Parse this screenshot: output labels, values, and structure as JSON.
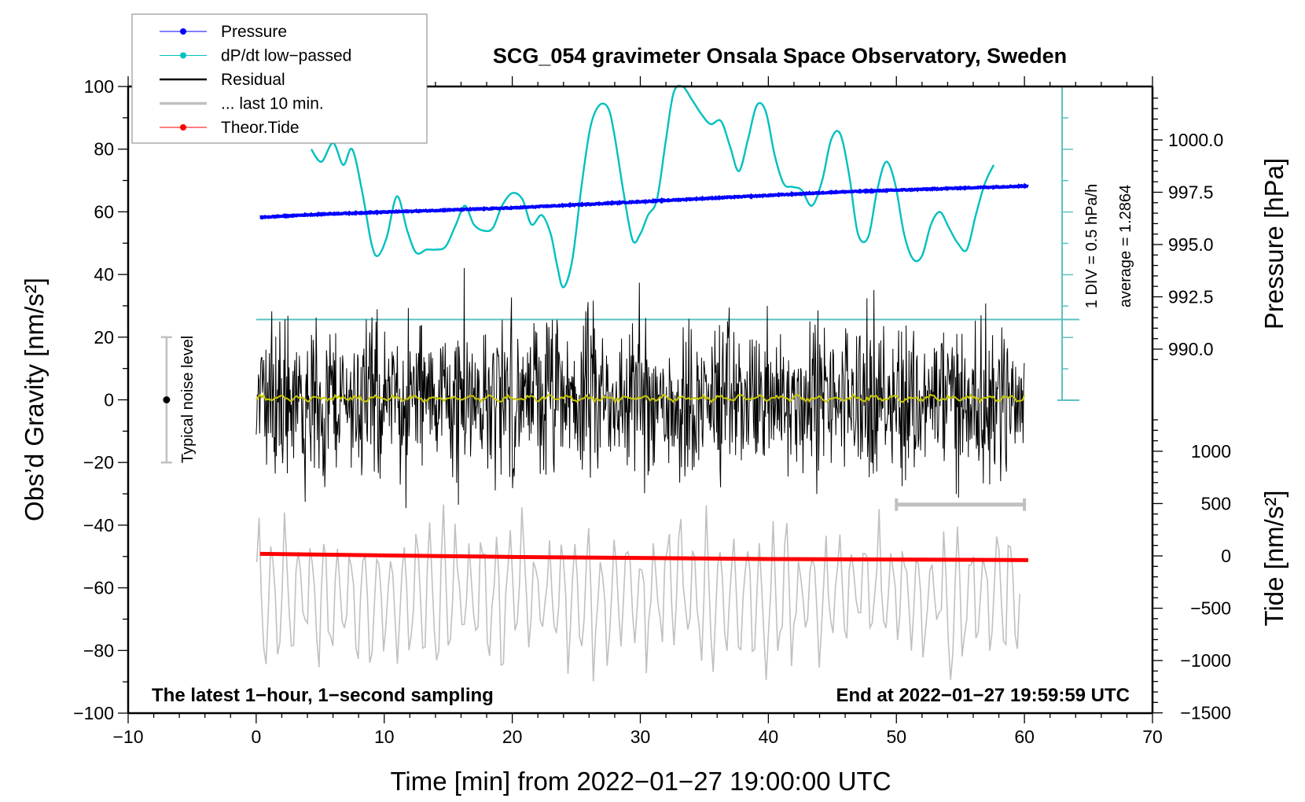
{
  "chart_data": {
    "type": "line",
    "title": "SCG_054 gravimeter Onsala Space Observatory, Sweden",
    "xlabel": "Time [min] from 2022−01−27 19:00:00 UTC",
    "ylabel_left": "Obs’d Gravity [nm/s²]",
    "ylabel_right_top": "Pressure [hPa]",
    "ylabel_right_bottom": "Tide [nm/s²]",
    "xlim": [
      -10,
      70
    ],
    "ylim_left": [
      -100,
      100
    ],
    "x_ticks": [
      "−10",
      "0",
      "10",
      "20",
      "30",
      "40",
      "50",
      "60",
      "70"
    ],
    "x_tick_values": [
      -10,
      0,
      10,
      20,
      30,
      40,
      50,
      60,
      70
    ],
    "y_left_ticks": [
      "100",
      "80",
      "60",
      "40",
      "20",
      "0",
      "−20",
      "−40",
      "−60",
      "−80",
      "−100"
    ],
    "y_left_tick_values": [
      100,
      80,
      60,
      40,
      20,
      0,
      -20,
      -40,
      -60,
      -80,
      -100
    ],
    "pressure_axis": {
      "ticks": [
        "1000.0",
        "997.5",
        "995.0",
        "992.5",
        "990.0"
      ],
      "tick_values": [
        1000.0,
        997.5,
        995.0,
        992.5,
        990.0
      ]
    },
    "tide_axis": {
      "ticks": [
        "1000",
        "500",
        "0",
        "−500",
        "−1000",
        "−1500"
      ],
      "tick_values": [
        1000,
        500,
        0,
        -500,
        -1000,
        -1500
      ]
    },
    "grid": false,
    "legend_position": "top-left",
    "legend": [
      {
        "label": "Pressure",
        "color": "#0000ff",
        "marker": true
      },
      {
        "label": "dP/dt low−passed",
        "color": "#00c0c0",
        "marker": true
      },
      {
        "label": "Residual",
        "color": "#000000",
        "marker": false
      },
      {
        "label": "... last 10 min.",
        "color": "#c0c0c0",
        "marker": false
      },
      {
        "label": "Theor.Tide",
        "color": "#ff0000",
        "marker": true
      }
    ],
    "series": [
      {
        "name": "Pressure",
        "axis": "pressure_hPa",
        "color": "#0000ff",
        "x": [
          0.3,
          5,
          10,
          15,
          20,
          25,
          30,
          35,
          40,
          45,
          50,
          55,
          60.3
        ],
        "values": [
          996.3,
          996.45,
          996.55,
          996.65,
          996.75,
          996.9,
          997.05,
          997.2,
          997.35,
          997.5,
          997.6,
          997.7,
          997.8
        ]
      },
      {
        "name": "dP/dt low-passed",
        "axis": "dpdt_div",
        "unit": "hPa/h",
        "div_value": 0.5,
        "average": 1.2864,
        "color": "#00c0c0",
        "x": [
          4.3,
          5.1,
          6.0,
          6.8,
          7.5,
          8.3,
          9.0,
          9.5,
          10.2,
          11.0,
          11.8,
          12.5,
          13.3,
          14.0,
          14.8,
          15.6,
          16.3,
          17.0,
          17.8,
          18.5,
          19.2,
          20.0,
          20.8,
          21.5,
          22.3,
          23.0,
          23.5,
          24.0,
          24.7,
          25.4,
          26.1,
          26.8,
          27.5,
          28.0,
          28.7,
          29.4,
          30.0,
          30.6,
          31.3,
          32.0,
          32.6,
          33.3,
          34.0,
          34.8,
          35.5,
          36.3,
          37.0,
          37.7,
          38.4,
          39.1,
          39.8,
          40.5,
          41.2,
          41.9,
          42.6,
          43.4,
          44.2,
          44.9,
          45.6,
          46.3,
          47.0,
          47.8,
          48.5,
          49.2,
          49.9,
          50.6,
          51.3,
          52.0,
          52.7,
          53.4,
          54.1,
          54.8,
          55.5,
          56.2,
          56.9,
          57.6
        ],
        "values": [
          8.0,
          7.6,
          8.2,
          7.5,
          8.0,
          6.6,
          5.0,
          4.6,
          5.2,
          6.5,
          5.4,
          4.7,
          4.8,
          4.8,
          4.9,
          5.6,
          6.2,
          5.6,
          5.4,
          5.5,
          6.2,
          6.6,
          6.4,
          5.6,
          5.9,
          5.3,
          4.3,
          3.6,
          4.5,
          6.8,
          8.7,
          9.4,
          9.3,
          8.4,
          6.6,
          5.1,
          5.3,
          5.9,
          6.4,
          8.3,
          9.8,
          10.0,
          9.6,
          9.1,
          8.8,
          8.9,
          8.1,
          7.3,
          8.3,
          9.4,
          9.2,
          7.8,
          6.9,
          6.8,
          6.7,
          6.2,
          7.0,
          8.3,
          8.5,
          7.2,
          5.3,
          5.2,
          6.7,
          7.6,
          6.9,
          5.3,
          4.5,
          4.6,
          5.6,
          6.0,
          5.5,
          5.0,
          4.8,
          5.9,
          6.9,
          7.5
        ]
      },
      {
        "name": "Residual",
        "axis": "gravity",
        "color": "#000000",
        "x_range": [
          0,
          60
        ],
        "envelope_min": -45,
        "envelope_max": 48,
        "typical_amplitude": 20
      },
      {
        "name": "Residual low-passed",
        "axis": "gravity",
        "color": "#c8c800",
        "x_range": [
          0,
          60
        ],
        "mean": 0.5
      },
      {
        "name": "... last 10 min.",
        "axis": "tide",
        "color": "#c0c0c0",
        "x_range": [
          0,
          60
        ],
        "envelope_min": -1500,
        "envelope_max": 500
      },
      {
        "name": "Theor.Tide",
        "axis": "tide",
        "color": "#ff0000",
        "x": [
          0.3,
          10,
          20,
          30,
          40,
          50,
          60.3
        ],
        "values": [
          20,
          5,
          -10,
          -20,
          -30,
          -35,
          -40
        ]
      }
    ],
    "typical_noise_level": {
      "label": "Typical noise level",
      "x": -7,
      "center": 0,
      "half_range": 20
    },
    "last_10min_bar": {
      "x_start": 50,
      "x_end": 60,
      "tide_value": 490
    },
    "annotations": {
      "scale_div": "1 DIV = 0.5 hPa/h",
      "average": "average = 1.2864",
      "bottom_left": "The latest 1−hour, 1−second sampling",
      "bottom_right": "End at 2022−01−27 19:59:59 UTC"
    }
  }
}
